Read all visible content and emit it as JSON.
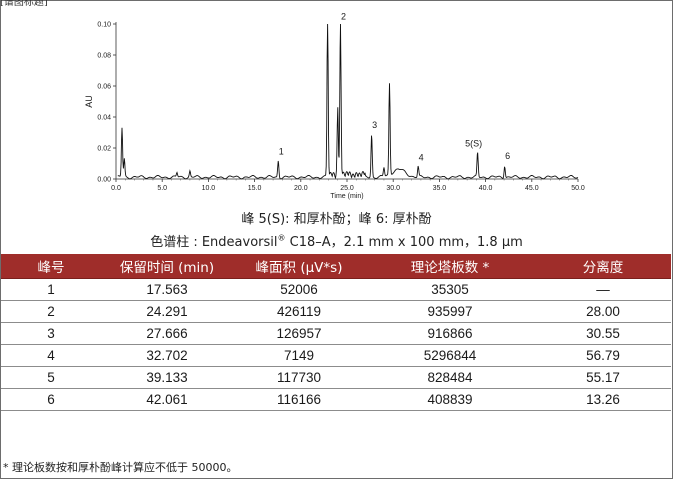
{
  "chart_data": {
    "type": "line",
    "ylabel": "AU",
    "xlabel": "Time (min)",
    "xlim": [
      0,
      50
    ],
    "ylim": [
      0,
      0.1
    ],
    "x_ticks": [
      "0.0",
      "5.0",
      "10.0",
      "15.0",
      "20.0",
      "25.0",
      "30.0",
      "35.0",
      "40.0",
      "45.0",
      "50.0"
    ],
    "y_ticks": [
      "0.00",
      "0.02",
      "0.04",
      "0.06",
      "0.08",
      "0.10"
    ],
    "peaks": [
      {
        "label": "1",
        "x": 17.563,
        "y": 0.012
      },
      {
        "label": "2",
        "x": 24.291,
        "y": 0.099
      },
      {
        "label": "3",
        "x": 27.666,
        "y": 0.029
      },
      {
        "label": "4",
        "x": 32.702,
        "y": 0.008
      },
      {
        "label": "5(S)",
        "x": 39.133,
        "y": 0.017
      },
      {
        "label": "6",
        "x": 42.061,
        "y": 0.009
      }
    ],
    "other_peaks": [
      {
        "x": 0.65,
        "y": 0.033
      },
      {
        "x": 0.9,
        "y": 0.013
      },
      {
        "x": 6.6,
        "y": 0.004
      },
      {
        "x": 8.0,
        "y": 0.005
      },
      {
        "x": 22.9,
        "y": 0.1
      },
      {
        "x": 24.0,
        "y": 0.045
      },
      {
        "x": 29.6,
        "y": 0.06
      },
      {
        "x": 29.0,
        "y": 0.007
      }
    ]
  },
  "captions": {
    "line1": "峰 5(S): 和厚朴酚；峰 6: 厚朴酚",
    "line2_pre": "色谱柱 : Endeavorsil",
    "line2_reg": "®",
    "line2_post": " C18–A，2.1 mm x 100 mm，1.8 μm"
  },
  "table": {
    "headers": [
      "峰号",
      "保留时间 (min)",
      "峰面积 (μV*s)",
      "理论塔板数 *",
      "分离度"
    ],
    "rows": [
      [
        "1",
        "17.563",
        "52006",
        "35305",
        "—"
      ],
      [
        "2",
        "24.291",
        "426119",
        "935997",
        "28.00"
      ],
      [
        "3",
        "27.666",
        "126957",
        "916866",
        "30.55"
      ],
      [
        "4",
        "32.702",
        "7149",
        "5296844",
        "56.79"
      ],
      [
        "5",
        "39.133",
        "117730",
        "828484",
        "55.17"
      ],
      [
        "6",
        "42.061",
        "116166",
        "408839",
        "13.26"
      ]
    ]
  },
  "footnote": "* 理论板数按和厚朴酚峰计算应不低于 50000。",
  "top_text": "[谱图标题]",
  "colors": {
    "header_bg": "#9f2d2a",
    "header_text": "#ffffff",
    "trace": "#111111"
  }
}
